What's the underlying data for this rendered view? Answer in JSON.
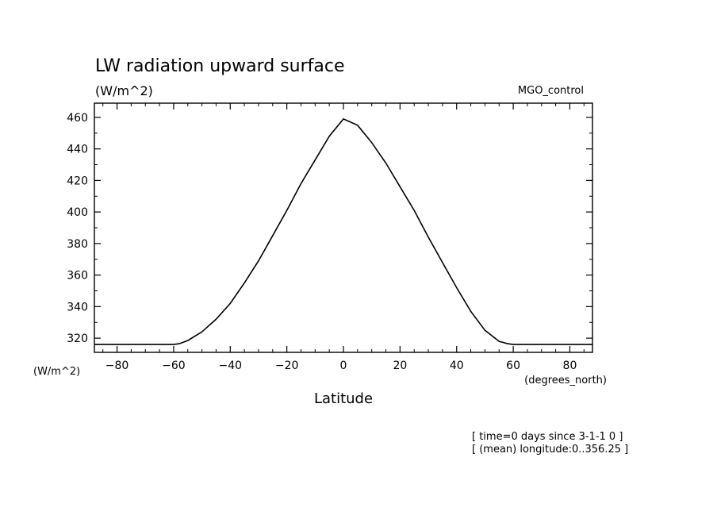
{
  "chart_data": {
    "type": "line",
    "title": "LW radiation upward surface",
    "subtitle": "(W/m^2)",
    "dataset_label": "MGO_control",
    "xlabel": "Latitude",
    "x_units": "(degrees_north)",
    "y_units": "(W/m^2)",
    "xlim": [
      -88,
      88
    ],
    "ylim": [
      311,
      469
    ],
    "x_ticks": [
      -80,
      -60,
      -40,
      -20,
      0,
      20,
      40,
      60,
      80
    ],
    "y_ticks": [
      320,
      340,
      360,
      380,
      400,
      420,
      440,
      460
    ],
    "grid": false,
    "series": [
      {
        "x": [
          -88,
          -80,
          -70,
          -60,
          -58,
          -55,
          -50,
          -45,
          -40,
          -35,
          -30,
          -25,
          -20,
          -15,
          -10,
          -5,
          0,
          5,
          10,
          15,
          20,
          25,
          30,
          35,
          40,
          45,
          50,
          55,
          58,
          60,
          70,
          80,
          88
        ],
        "values": [
          316,
          316,
          316,
          316,
          316.5,
          318.5,
          324,
          332,
          342,
          355,
          369,
          385,
          401,
          418,
          433,
          448,
          459,
          455,
          444,
          431,
          416,
          401,
          384,
          368,
          352,
          337,
          325,
          318,
          316.5,
          316,
          316,
          316,
          316
        ]
      }
    ],
    "color": "#000000"
  },
  "footer": {
    "line1": "[ time=0 days since 3-1-1 0 ]",
    "line2": "[ (mean) longitude:0..356.25 ]"
  }
}
